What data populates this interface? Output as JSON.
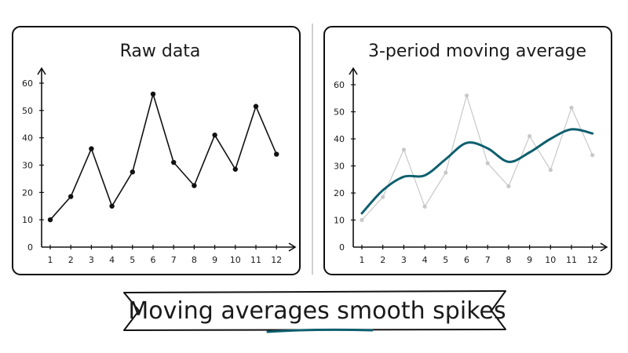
{
  "banner": {
    "text": "Moving averages smooth spikes"
  },
  "chart_data": [
    {
      "type": "line",
      "title": "Raw data",
      "x": [
        1,
        2,
        3,
        4,
        5,
        6,
        7,
        8,
        9,
        10,
        11,
        12
      ],
      "ylim": [
        0,
        60
      ],
      "yticks": [
        0,
        10,
        20,
        30,
        40,
        50,
        60
      ],
      "series": [
        {
          "values": [
            10,
            18.5,
            36,
            15,
            27.5,
            56,
            31,
            22.5,
            41,
            28.5,
            51.5,
            34
          ],
          "color": "#111111"
        }
      ]
    },
    {
      "type": "line",
      "title": "3-period moving average",
      "x": [
        1,
        2,
        3,
        4,
        5,
        6,
        7,
        8,
        9,
        10,
        11,
        12
      ],
      "ylim": [
        0,
        60
      ],
      "yticks": [
        0,
        10,
        20,
        30,
        40,
        50,
        60
      ],
      "series": [
        {
          "values": [
            10,
            18.5,
            36,
            15,
            27.5,
            56,
            31,
            22.5,
            41,
            28.5,
            51.5,
            34
          ],
          "color": "#c8c8c8"
        },
        {
          "values": [
            12.5,
            21,
            26,
            26.5,
            32.5,
            38.5,
            36.5,
            31.5,
            35,
            40,
            43.5,
            42
          ],
          "color": "#0e5f6e"
        }
      ]
    }
  ]
}
